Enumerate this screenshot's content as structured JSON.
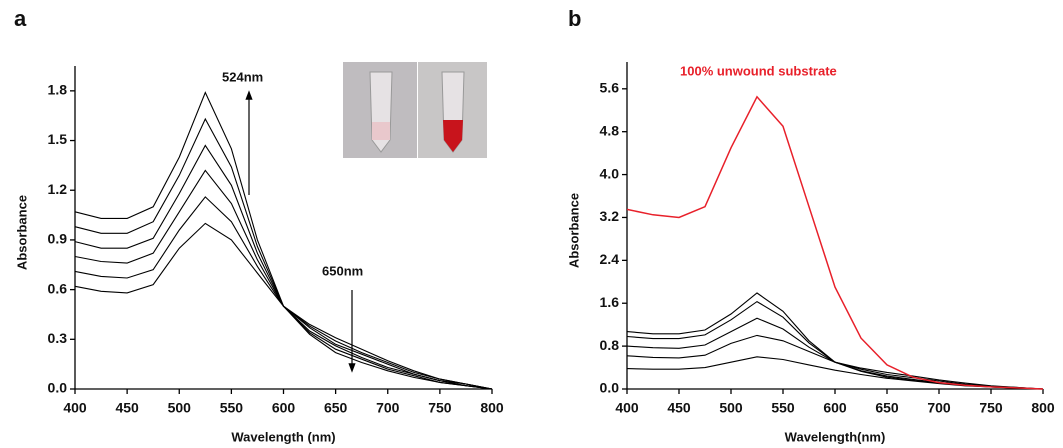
{
  "chart_data": [
    {
      "type": "line",
      "panel": "a",
      "xlabel": "Wavelength (nm)",
      "ylabel": "Absorbance",
      "annotations": [
        "524nm",
        "650nm"
      ],
      "x": [
        400,
        425,
        450,
        475,
        500,
        525,
        550,
        575,
        600,
        625,
        650,
        675,
        700,
        725,
        750,
        775,
        800
      ],
      "xlim": [
        400,
        800
      ],
      "xticks": [
        400,
        450,
        500,
        550,
        600,
        650,
        700,
        750,
        800
      ],
      "ylim": [
        0,
        1.95
      ],
      "yticks": [
        {
          "value": 0,
          "label": "0.0"
        },
        {
          "value": 0.3,
          "label": "0.3"
        },
        {
          "value": 0.6,
          "label": "0.6"
        },
        {
          "value": 0.9,
          "label": "0.9"
        },
        {
          "value": 1.2,
          "label": "1.2"
        },
        {
          "value": 1.5,
          "label": "1.5"
        },
        {
          "value": 1.8,
          "label": "1.8"
        }
      ],
      "series": [
        {
          "color": "#000000",
          "values": [
            0.62,
            0.59,
            0.58,
            0.63,
            0.85,
            1.0,
            0.9,
            0.7,
            0.5,
            0.39,
            0.31,
            0.24,
            0.17,
            0.11,
            0.06,
            0.03,
            0
          ]
        },
        {
          "color": "#000000",
          "values": [
            0.71,
            0.68,
            0.67,
            0.72,
            0.96,
            1.16,
            1.01,
            0.74,
            0.5,
            0.38,
            0.29,
            0.22,
            0.16,
            0.1,
            0.06,
            0.03,
            0
          ]
        },
        {
          "color": "#000000",
          "values": [
            0.8,
            0.77,
            0.76,
            0.82,
            1.07,
            1.32,
            1.12,
            0.78,
            0.5,
            0.37,
            0.27,
            0.21,
            0.15,
            0.09,
            0.05,
            0.03,
            0
          ]
        },
        {
          "color": "#000000",
          "values": [
            0.89,
            0.85,
            0.85,
            0.91,
            1.18,
            1.47,
            1.23,
            0.82,
            0.5,
            0.35,
            0.26,
            0.19,
            0.13,
            0.09,
            0.05,
            0.02,
            0
          ]
        },
        {
          "color": "#000000",
          "values": [
            0.98,
            0.94,
            0.94,
            1.01,
            1.29,
            1.63,
            1.34,
            0.86,
            0.5,
            0.34,
            0.24,
            0.18,
            0.12,
            0.08,
            0.04,
            0.02,
            0
          ]
        },
        {
          "color": "#000000",
          "values": [
            1.07,
            1.03,
            1.03,
            1.1,
            1.4,
            1.79,
            1.45,
            0.9,
            0.5,
            0.33,
            0.22,
            0.16,
            0.11,
            0.07,
            0.04,
            0.02,
            0
          ]
        }
      ]
    },
    {
      "type": "line",
      "panel": "b",
      "xlabel": "Wavelength(nm)",
      "ylabel": "Absorbance",
      "annotations": [
        "100% unwound substrate"
      ],
      "x": [
        400,
        425,
        450,
        475,
        500,
        525,
        550,
        575,
        600,
        625,
        650,
        675,
        700,
        725,
        750,
        775,
        800
      ],
      "xlim": [
        400,
        800
      ],
      "xticks": [
        400,
        450,
        500,
        550,
        600,
        650,
        700,
        750,
        800
      ],
      "ylim": [
        0,
        6.1
      ],
      "yticks": [
        {
          "value": 0,
          "label": "0.0"
        },
        {
          "value": 0.8,
          "label": "0.8"
        },
        {
          "value": 1.6,
          "label": "1.6"
        },
        {
          "value": 2.4,
          "label": "2.4"
        },
        {
          "value": 3.2,
          "label": "3.2"
        },
        {
          "value": 4,
          "label": "4.0"
        },
        {
          "value": 4.8,
          "label": "4.8"
        },
        {
          "value": 5.6,
          "label": "5.6"
        }
      ],
      "series": [
        {
          "color": "#000000",
          "values": [
            0.38,
            0.37,
            0.37,
            0.4,
            0.5,
            0.6,
            0.55,
            0.45,
            0.35,
            0.27,
            0.2,
            0.15,
            0.1,
            0.06,
            0.04,
            0.02,
            0
          ]
        },
        {
          "color": "#000000",
          "values": [
            0.62,
            0.59,
            0.58,
            0.63,
            0.85,
            1.0,
            0.9,
            0.7,
            0.5,
            0.39,
            0.31,
            0.24,
            0.17,
            0.11,
            0.06,
            0.03,
            0
          ]
        },
        {
          "color": "#000000",
          "values": [
            0.8,
            0.77,
            0.76,
            0.82,
            1.07,
            1.32,
            1.12,
            0.78,
            0.5,
            0.37,
            0.27,
            0.21,
            0.15,
            0.09,
            0.05,
            0.03,
            0
          ]
        },
        {
          "color": "#000000",
          "values": [
            0.98,
            0.94,
            0.94,
            1.01,
            1.29,
            1.63,
            1.34,
            0.86,
            0.5,
            0.34,
            0.24,
            0.18,
            0.12,
            0.08,
            0.04,
            0.02,
            0
          ]
        },
        {
          "color": "#000000",
          "values": [
            1.07,
            1.03,
            1.03,
            1.1,
            1.4,
            1.79,
            1.45,
            0.9,
            0.5,
            0.33,
            0.22,
            0.16,
            0.11,
            0.07,
            0.04,
            0.02,
            0
          ]
        },
        {
          "color": "#e8202a",
          "values": [
            3.35,
            3.25,
            3.2,
            3.4,
            4.5,
            5.45,
            4.9,
            3.4,
            1.9,
            0.95,
            0.45,
            0.22,
            0.12,
            0.07,
            0.04,
            0.02,
            0
          ]
        }
      ]
    }
  ]
}
